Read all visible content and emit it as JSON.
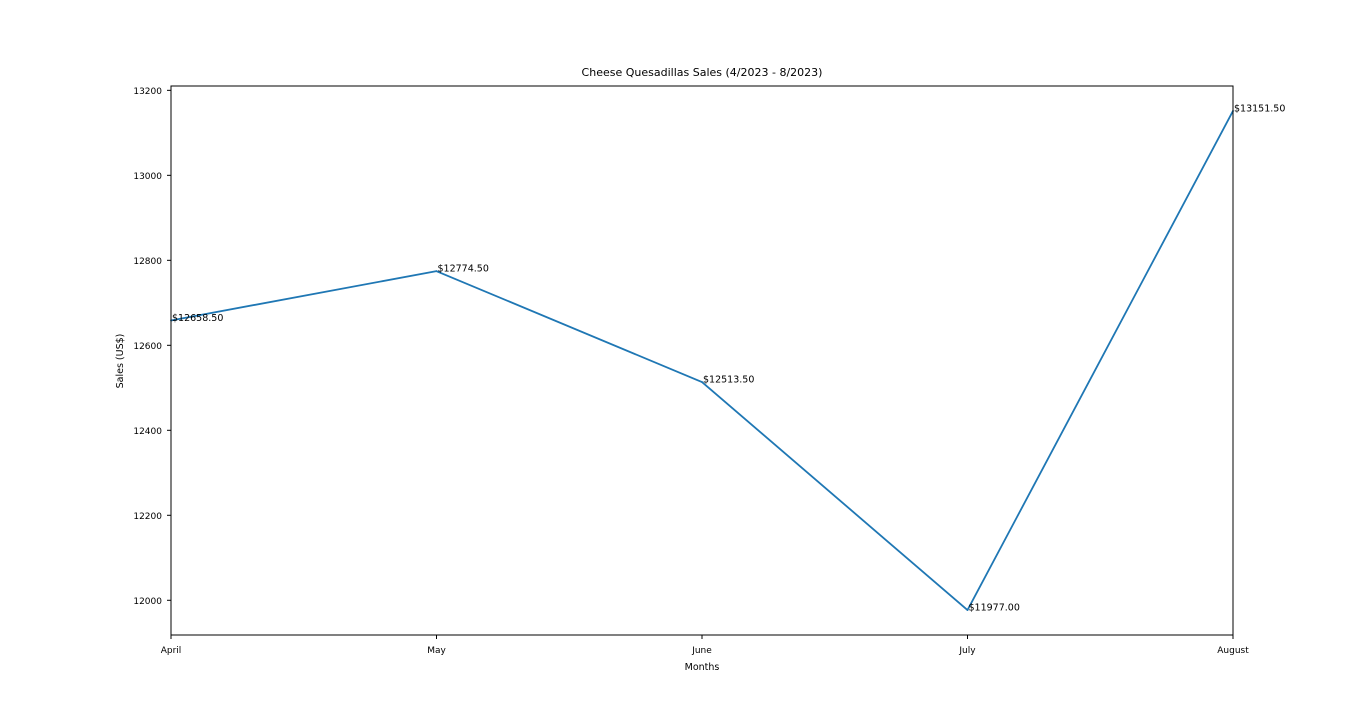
{
  "chart_data": {
    "type": "line",
    "title": "Cheese Quesadillas Sales (4/2023 - 8/2023)",
    "xlabel": "Months",
    "ylabel": "Sales (US$)",
    "categories": [
      "April",
      "May",
      "June",
      "July",
      "August"
    ],
    "series": [
      {
        "values": [
          12658.5,
          12774.5,
          12513.5,
          11977.0,
          13151.5
        ]
      }
    ],
    "data_labels": [
      "$12658.50",
      "$12774.50",
      "$12513.50",
      "$11977.00",
      "$13151.50"
    ],
    "yticks": [
      12000,
      12200,
      12400,
      12600,
      12800,
      13000,
      13200
    ],
    "ylim": [
      11918.3,
      13210.2
    ],
    "grid": false,
    "line_color": "#1f77b4"
  }
}
